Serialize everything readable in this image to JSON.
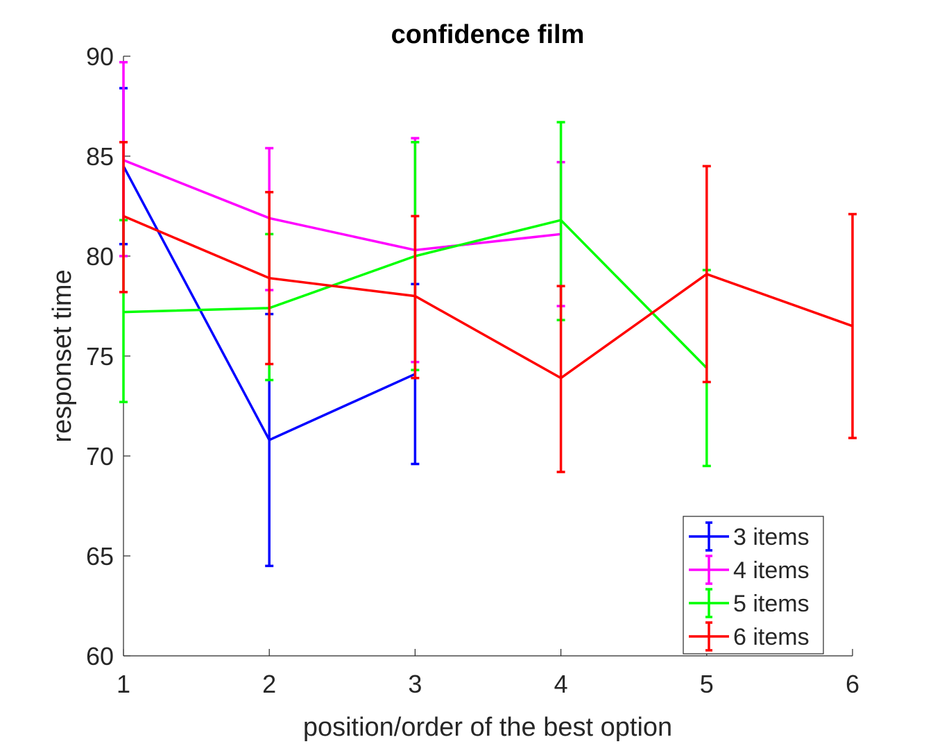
{
  "chart_data": {
    "type": "line",
    "title": "confidence film",
    "xlabel": "position/order of the best option",
    "ylabel": "responset time",
    "xlim": [
      1,
      6
    ],
    "ylim": [
      60,
      90
    ],
    "xticks": [
      1,
      2,
      3,
      4,
      5,
      6
    ],
    "yticks": [
      60,
      65,
      70,
      75,
      80,
      85,
      90
    ],
    "grid": false,
    "legend_position": "bottom-right",
    "series": [
      {
        "name": "3 items",
        "color": "#0000ff",
        "x": [
          1,
          2,
          3
        ],
        "y": [
          84.5,
          70.8,
          74.1
        ],
        "err_low": [
          80.6,
          64.5,
          69.6
        ],
        "err_high": [
          88.4,
          77.1,
          78.6
        ]
      },
      {
        "name": "4 items",
        "color": "#ff00ff",
        "x": [
          1,
          2,
          3,
          4
        ],
        "y": [
          84.8,
          81.9,
          80.3,
          81.1
        ],
        "err_low": [
          80.0,
          78.3,
          74.7,
          77.5
        ],
        "err_high": [
          89.7,
          85.4,
          85.9,
          84.7
        ]
      },
      {
        "name": "5 items",
        "color": "#00ff00",
        "x": [
          1,
          2,
          3,
          4,
          5
        ],
        "y": [
          77.2,
          77.4,
          80.0,
          81.8,
          74.4
        ],
        "err_low": [
          72.7,
          73.8,
          74.3,
          76.8,
          69.5
        ],
        "err_high": [
          81.8,
          81.1,
          85.7,
          86.7,
          79.3
        ]
      },
      {
        "name": "6 items",
        "color": "#ff0000",
        "x": [
          1,
          2,
          3,
          4,
          5,
          6
        ],
        "y": [
          82.0,
          78.9,
          78.0,
          73.9,
          79.1,
          76.5
        ],
        "err_low": [
          78.2,
          74.6,
          73.9,
          69.2,
          73.7,
          70.9
        ],
        "err_high": [
          85.7,
          83.2,
          82.0,
          78.5,
          84.5,
          82.1
        ]
      }
    ]
  }
}
